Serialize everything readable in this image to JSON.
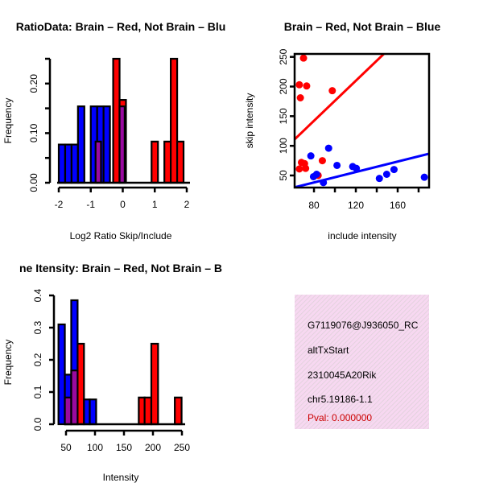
{
  "colors": {
    "red": "#ff0000",
    "blue": "#0000ff",
    "purple": "#9a0aa0",
    "panel": "#f7d8f1",
    "pval": "#cc0000"
  },
  "chart_data": [
    {
      "type": "bar",
      "title": "RatioData: Brain – Red, Not Brain – Blu",
      "xlabel": "Log2 Ratio Skip/Include",
      "ylabel": "Frequency",
      "xlim": [
        -2,
        2
      ],
      "ylim": [
        0,
        0.25
      ],
      "xticks": [
        "-2",
        "-1",
        "0",
        "1",
        "2"
      ],
      "xtick_values": [
        -2,
        -1,
        0,
        1,
        2
      ],
      "yticks": [
        "0.00",
        "0.10",
        "0.20"
      ],
      "ytick_values": [
        0,
        0.05,
        0.1,
        0.15,
        0.2,
        0.25
      ],
      "ytick_labeled": [
        0,
        0.1,
        0.2
      ],
      "series": [
        {
          "name": "Not Brain",
          "color": "blue",
          "bins": [
            [
              -2,
              -1.8,
              0.077
            ],
            [
              -1.8,
              -1.6,
              0.077
            ],
            [
              -1.6,
              -1.4,
              0.077
            ],
            [
              -1.4,
              -1.2,
              0.154
            ],
            [
              -1.0,
              -0.8,
              0.154
            ],
            [
              -0.8,
              -0.6,
              0.154
            ],
            [
              -0.6,
              -0.4,
              0.154
            ]
          ]
        },
        {
          "name": "Brain",
          "color": "red",
          "bins": [
            [
              -0.3,
              -0.1,
              0.25
            ],
            [
              -0.1,
              0.1,
              0.167
            ],
            [
              0.9,
              1.1,
              0.083
            ],
            [
              1.3,
              1.5,
              0.083
            ],
            [
              1.5,
              1.7,
              0.25
            ],
            [
              1.7,
              1.9,
              0.083
            ]
          ]
        },
        {
          "name": "Overlap",
          "color": "purple",
          "bins": [
            [
              -0.85,
              -0.68,
              0.083
            ],
            [
              -0.1,
              0.06,
              0.154
            ]
          ]
        }
      ]
    },
    {
      "type": "scatter",
      "title": "Brain – Red, Not Brain – Blue",
      "xlabel": "include intensity",
      "ylabel": "skip intensity",
      "xlim": [
        61.5,
        190
      ],
      "ylim": [
        29.6,
        255
      ],
      "xticks": [
        "80",
        "120",
        "160"
      ],
      "xtick_values": [
        80,
        100,
        120,
        140,
        160,
        180
      ],
      "xtick_labeled": [
        80,
        120,
        160
      ],
      "yticks": [
        "50",
        "100",
        "150",
        "200",
        "250"
      ],
      "ytick_values": [
        50,
        100,
        150,
        200,
        250
      ],
      "series": [
        {
          "name": "Brain",
          "color": "red",
          "points": [
            [
              70,
              248
            ],
            [
              66,
              203
            ],
            [
              73,
              201
            ],
            [
              67,
              181
            ],
            [
              97.5,
              193
            ],
            [
              68,
              72
            ],
            [
              71,
              70
            ],
            [
              66,
              61
            ],
            [
              72,
              62
            ],
            [
              88,
              75
            ],
            [
              84,
              50
            ]
          ],
          "fit": {
            "intercept": 7,
            "slope": 1.69
          }
        },
        {
          "name": "Not Brain",
          "color": "blue",
          "points": [
            [
              77,
              83
            ],
            [
              79.5,
              48
            ],
            [
              82.5,
              52
            ],
            [
              89,
              38
            ],
            [
              94,
              96
            ],
            [
              102,
              67
            ],
            [
              117,
              65
            ],
            [
              120.5,
              62
            ],
            [
              142.5,
              45
            ],
            [
              149.5,
              52
            ],
            [
              156.5,
              60
            ],
            [
              185.5,
              47
            ]
          ],
          "fit": {
            "intercept": 2.9,
            "slope": 0.441
          }
        }
      ]
    },
    {
      "type": "bar",
      "title": "ne Itensity: Brain – Red, Not Brain – B",
      "xlabel": "Intensity",
      "ylabel": "Frequency",
      "xlim": [
        50,
        250
      ],
      "ylim": [
        0,
        0.4
      ],
      "xticks": [
        "50",
        "100",
        "150",
        "200",
        "250"
      ],
      "xtick_values": [
        50,
        100,
        150,
        200,
        250
      ],
      "yticks": [
        "0.0",
        "0.1",
        "0.2",
        "0.3",
        "0.4"
      ],
      "ytick_values": [
        0,
        0.1,
        0.2,
        0.3,
        0.4
      ],
      "series": [
        {
          "name": "Not Brain",
          "color": "blue",
          "bins": [
            [
              37,
              48,
              0.31
            ],
            [
              48,
              59,
              0.154
            ],
            [
              59,
              70,
              0.385
            ],
            [
              81,
              91,
              0.077
            ],
            [
              91,
              102,
              0.077
            ]
          ]
        },
        {
          "name": "Brain",
          "color": "red",
          "bins": [
            [
              70,
              81,
              0.25
            ],
            [
              175.5,
              185.6,
              0.083
            ],
            [
              185.6,
              197.2,
              0.083
            ],
            [
              197.2,
              208.8,
              0.25
            ],
            [
              237.7,
              249.4,
              0.083
            ]
          ]
        },
        {
          "name": "Overlap",
          "color": "purple",
          "bins": [
            [
              48,
              59,
              0.083
            ],
            [
              59,
              70,
              0.167
            ]
          ]
        }
      ]
    }
  ],
  "info_panel": {
    "event_id": "G7119076@J936050_RC",
    "event_type": "altTxStart",
    "gene": "2310045A20Rik",
    "transcript": "chr5.19186-1.1",
    "pval": "Pval: 0.000000"
  }
}
